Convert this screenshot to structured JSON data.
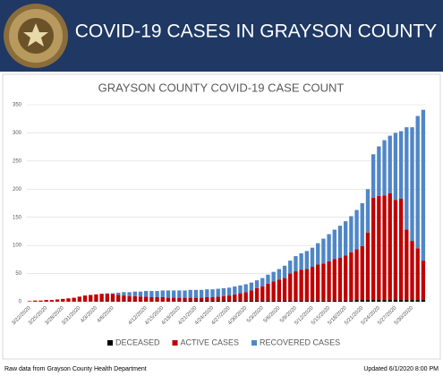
{
  "header": {
    "title": "COVID-19 CASES IN GRAYSON COUNTY"
  },
  "chart_data": {
    "type": "bar",
    "stacked": true,
    "grid": true,
    "title": "GRAYSON COUNTY COVID-19 CASE COUNT",
    "legend": "bottom",
    "categories": [
      "3/22/2020",
      null,
      null,
      "3/25/2020",
      null,
      null,
      "3/28/2020",
      null,
      null,
      "3/31/2020",
      null,
      null,
      "4/3/2020",
      null,
      null,
      "4/6/2020",
      null,
      null,
      null,
      null,
      null,
      "4/12/2020",
      null,
      null,
      "4/15/2020",
      null,
      null,
      "4/18/2020",
      null,
      null,
      "4/21/2020",
      null,
      null,
      "4/24/2020",
      null,
      null,
      "4/27/2020",
      null,
      null,
      "4/30/2020",
      null,
      null,
      "5/3/2020",
      null,
      null,
      "5/6/2020",
      null,
      null,
      "5/9/2020",
      null,
      null,
      "5/12/2020",
      null,
      null,
      "5/15/2020",
      null,
      null,
      "5/18/2020",
      null,
      null,
      "5/21/2020",
      null,
      null,
      "5/24/2020",
      null,
      null,
      "5/27/2020",
      null,
      null,
      "5/30/2020",
      null,
      null
    ],
    "series": [
      {
        "name": "DECEASED",
        "color": "#000000",
        "values": [
          0,
          0,
          0,
          0,
          0,
          0,
          0,
          0,
          0,
          0,
          0,
          0,
          1,
          1,
          1,
          1,
          1,
          1,
          1,
          1,
          1,
          1,
          1,
          1,
          1,
          1,
          1,
          1,
          2,
          2,
          2,
          2,
          2,
          2,
          2,
          2,
          2,
          2,
          2,
          2,
          2,
          2,
          2,
          2,
          2,
          2,
          2,
          2,
          2,
          2,
          2,
          2,
          2,
          2,
          2,
          2,
          2,
          2,
          2,
          3,
          3,
          3,
          3,
          3,
          3,
          3,
          3,
          3,
          3,
          3,
          3,
          3
        ]
      },
      {
        "name": "ACTIVE CASES",
        "color": "#c00000",
        "values": [
          1,
          2,
          2,
          3,
          3,
          4,
          5,
          6,
          7,
          9,
          11,
          12,
          12,
          13,
          13,
          13,
          11,
          10,
          9,
          9,
          8,
          8,
          7,
          7,
          7,
          6,
          6,
          6,
          5,
          5,
          5,
          5,
          6,
          6,
          7,
          8,
          9,
          11,
          13,
          15,
          18,
          22,
          25,
          30,
          34,
          37,
          40,
          48,
          52,
          55,
          56,
          60,
          64,
          66,
          70,
          74,
          76,
          80,
          86,
          90,
          96,
          120,
          182,
          185,
          186,
          190,
          178,
          180,
          125,
          105,
          92,
          70
        ]
      },
      {
        "name": "RECOVERED CASES",
        "color": "#4f86c6",
        "values": [
          0,
          0,
          0,
          0,
          0,
          0,
          0,
          0,
          0,
          0,
          0,
          0,
          0,
          0,
          1,
          1,
          4,
          6,
          7,
          8,
          9,
          10,
          11,
          11,
          12,
          13,
          13,
          13,
          13,
          14,
          14,
          14,
          14,
          14,
          14,
          14,
          14,
          14,
          14,
          14,
          14,
          14,
          15,
          16,
          17,
          19,
          22,
          23,
          27,
          29,
          32,
          34,
          38,
          44,
          48,
          52,
          57,
          61,
          64,
          70,
          76,
          77,
          77,
          88,
          98,
          102,
          119,
          120,
          182,
          202,
          235,
          268
        ]
      }
    ],
    "ylim": [
      0,
      350
    ],
    "yticks": [
      0,
      50,
      100,
      150,
      200,
      250,
      300,
      350
    ]
  },
  "footer": {
    "source": "Raw data from Grayson County Health Department",
    "updated": "Updated 6/1/2020 8:00 PM"
  }
}
